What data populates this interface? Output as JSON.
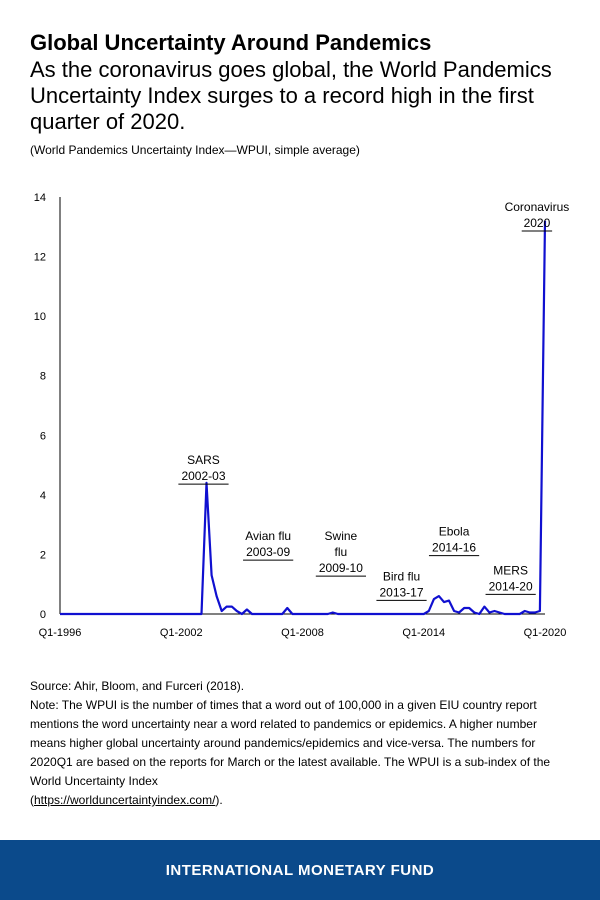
{
  "header": {
    "title": "Global Uncertainty Around Pandemics",
    "subtitle": "As the coronavirus goes global, the World Pandemics Uncertainty Index surges to a record high in the first quarter of 2020.",
    "measure": "(World Pandemics Uncertainty Index—WPUI, simple average)"
  },
  "chart_data": {
    "type": "line",
    "title": "",
    "xlabel": "",
    "ylabel": "",
    "ylim": [
      0,
      14
    ],
    "yticks": [
      "0",
      "2",
      "4",
      "6",
      "8",
      "10",
      "12",
      "14"
    ],
    "xticks": [
      "Q1-1996",
      "Q1-2002",
      "Q1-2008",
      "Q1-2014",
      "Q1-2020"
    ],
    "xtick_years": [
      1996,
      2002,
      2008,
      2014,
      2020
    ],
    "grid": false,
    "series_color": "#1010d0",
    "series": [
      {
        "x": [
          1996.0,
          1998.0,
          2000.0,
          2002.0,
          2002.25,
          2002.5,
          2002.75,
          2003.0,
          2003.25,
          2003.5,
          2003.75,
          2004.0,
          2004.25,
          2004.5,
          2004.75,
          2005.0,
          2005.25,
          2005.5,
          2005.75,
          2006.0,
          2006.5,
          2006.75,
          2007.0,
          2007.25,
          2007.5,
          2007.75,
          2008.0,
          2008.5,
          2009.0,
          2009.25,
          2009.5,
          2009.75,
          2010.0,
          2011.0,
          2012.0,
          2013.0,
          2014.0,
          2014.25,
          2014.5,
          2014.75,
          2015.0,
          2015.25,
          2015.5,
          2015.75,
          2016.0,
          2016.25,
          2016.5,
          2016.75,
          2017.0,
          2017.25,
          2017.5,
          2017.75,
          2018.0,
          2018.25,
          2018.5,
          2018.75,
          2019.0,
          2019.25,
          2019.5,
          2019.75,
          2020.0
        ],
        "y": [
          0,
          0,
          0,
          0,
          0,
          0,
          0,
          0,
          4.4,
          1.3,
          0.6,
          0.1,
          0.25,
          0.25,
          0.1,
          0,
          0.15,
          0,
          0,
          0,
          0,
          0,
          0,
          0.2,
          0,
          0,
          0,
          0,
          0,
          0,
          0.05,
          0,
          0,
          0,
          0,
          0,
          0,
          0.1,
          0.5,
          0.6,
          0.4,
          0.45,
          0.1,
          0.05,
          0.2,
          0.2,
          0.05,
          0,
          0.25,
          0.05,
          0.1,
          0.05,
          0,
          0,
          0,
          0,
          0.1,
          0.05,
          0.05,
          0.1,
          13.2
        ]
      }
    ],
    "annotations": [
      {
        "lines": [
          "SARS",
          "2002-03"
        ],
        "x": 2003.1,
        "y": 5.4,
        "underline": "2002-03"
      },
      {
        "lines": [
          "Avian flu",
          "2003-09"
        ],
        "x": 2006.3,
        "y": 2.85,
        "underline": "2003-09"
      },
      {
        "lines": [
          "Swine",
          "flu",
          "2009-10"
        ],
        "x": 2009.9,
        "y": 2.85,
        "underline": "2009-10"
      },
      {
        "lines": [
          "Bird flu",
          "2013-17"
        ],
        "x": 2012.9,
        "y": 1.5,
        "underline": "2013-17"
      },
      {
        "lines": [
          "Ebola",
          "2014-16"
        ],
        "x": 2015.5,
        "y": 3.0,
        "underline": "2014-16"
      },
      {
        "lines": [
          "MERS",
          "2014-20"
        ],
        "x": 2018.3,
        "y": 1.7,
        "underline": "2014-20"
      },
      {
        "lines": [
          "Coronavirus",
          "2020"
        ],
        "x": 2019.6,
        "y": 13.9,
        "underline": "2020"
      }
    ]
  },
  "footer": {
    "source": "Source: Ahir, Bloom, and Furceri (2018).",
    "note": "Note:  The WPUI is the number of times that a word out of 100,000 in a given EIU country report mentions the word uncertainty near a word related to pandemics or epidemics. A higher number means higher global uncertainty around pandemics/epidemics and vice-versa. The numbers for 2020Q1 are based on the reports for March or the latest available. The WPUI is a sub-index of the World Uncertainty Index",
    "link": "https://worlduncertaintyindex.com/",
    "after_link": ".",
    "brand": "INTERNATIONAL MONETARY FUND"
  }
}
